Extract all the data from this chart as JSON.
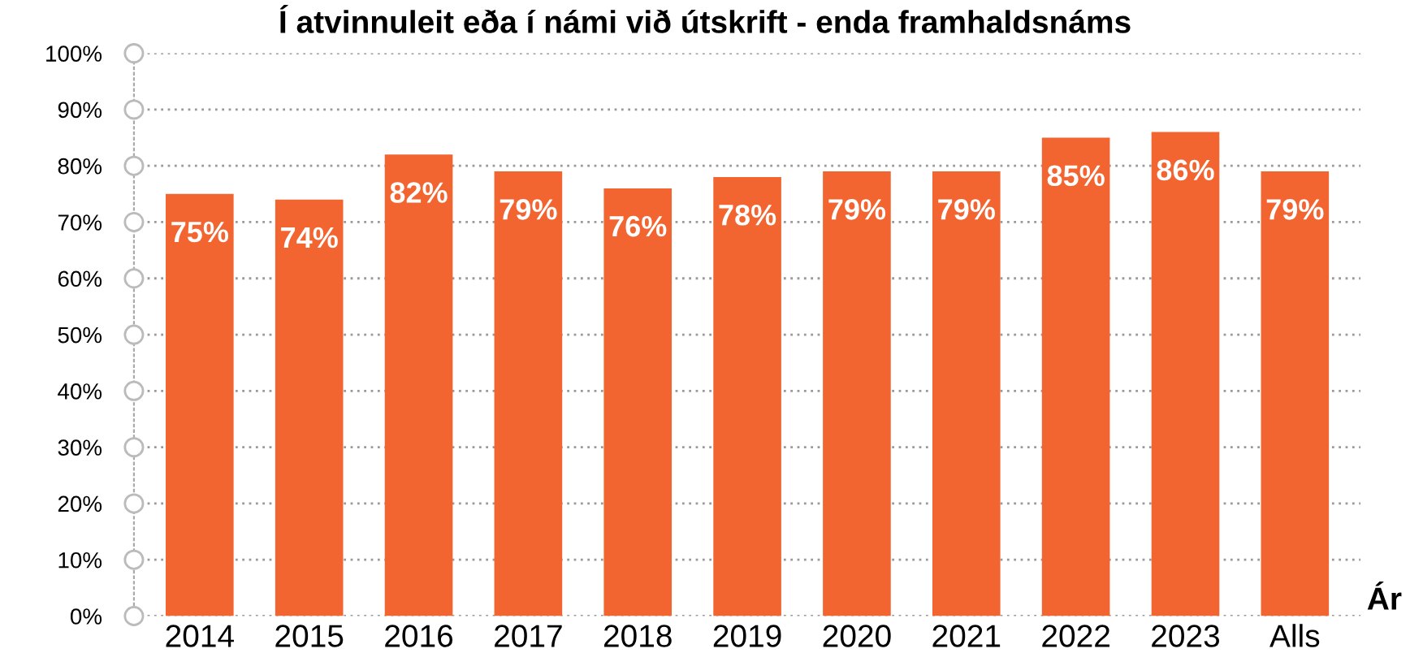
{
  "chart_data": {
    "type": "bar",
    "title": "Í atvinnuleit eða í námi við útskrift - enda framhaldsnáms",
    "xlabel": "Ár",
    "categories": [
      "2014",
      "2015",
      "2016",
      "2017",
      "2018",
      "2019",
      "2020",
      "2021",
      "2022",
      "2023",
      "Alls"
    ],
    "values": [
      75,
      74,
      82,
      79,
      76,
      78,
      79,
      79,
      85,
      86,
      79
    ],
    "value_labels": [
      "75%",
      "74%",
      "82%",
      "79%",
      "76%",
      "78%",
      "79%",
      "79%",
      "85%",
      "86%",
      "79%"
    ],
    "color": "#f26531",
    "ylim": [
      0,
      100
    ],
    "yticks": [
      {
        "value": 0,
        "label": "0%"
      },
      {
        "value": 10,
        "label": "10%"
      },
      {
        "value": 20,
        "label": "20%"
      },
      {
        "value": 30,
        "label": "30%"
      },
      {
        "value": 40,
        "label": "40%"
      },
      {
        "value": 50,
        "label": "50%"
      },
      {
        "value": 60,
        "label": "60%"
      },
      {
        "value": 70,
        "label": "70%"
      },
      {
        "value": 80,
        "label": "80%"
      },
      {
        "value": 90,
        "label": "90%"
      },
      {
        "value": 100,
        "label": "100%"
      }
    ],
    "grid": "y"
  }
}
